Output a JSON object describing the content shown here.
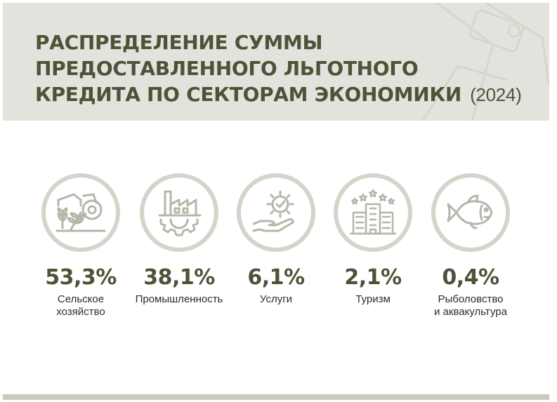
{
  "header": {
    "title_lines": [
      "РАСПРЕДЕЛЕНИЕ СУММЫ",
      "ПРЕДОСТАВЛЕННОГО ЛЬГОТНОГО",
      "КРЕДИТА ПО СЕКТОРАМ ЭКОНОМИКИ"
    ],
    "year": "(2024)"
  },
  "chart_data": {
    "type": "table",
    "title": "РАСПРЕДЕЛЕНИЕ СУММЫ ПРЕДОСТАВЛЕННОГО ЛЬГОТНОГО КРЕДИТА ПО СЕКТОРАМ ЭКОНОМИКИ (2024)",
    "unit": "%",
    "categories": [
      "Сельское хозяйство",
      "Промышленность",
      "Услуги",
      "Туризм",
      "Рыболовство и аквакультура"
    ],
    "values": [
      53.3,
      38.1,
      6.1,
      2.1,
      0.4
    ],
    "items": [
      {
        "label": "Сельское\nхозяйство",
        "value_text": "53,3%",
        "icon": "tractor-wheat-icon"
      },
      {
        "label": "Промышленность",
        "value_text": "38,1%",
        "icon": "factory-gear-icon"
      },
      {
        "label": "Услуги",
        "value_text": "6,1%",
        "icon": "hand-gear-icon"
      },
      {
        "label": "Туризм",
        "value_text": "2,1%",
        "icon": "hotel-stars-icon"
      },
      {
        "label": "Рыболовство\nи аквакультура",
        "value_text": "0,4%",
        "icon": "fish-icon"
      }
    ]
  },
  "colors": {
    "accent": "#4c5438",
    "header_bg": "#e3e3dd",
    "ring": "#d2d5ca",
    "icon": "#b4b7a8",
    "text": "#2d2d2d"
  }
}
